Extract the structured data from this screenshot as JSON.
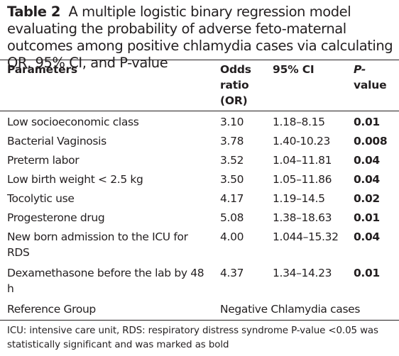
{
  "caption": {
    "label": "Table 2",
    "text": "A multiple logistic binary regression model evaluating the probability of adverse feto-maternal outcomes among positive chlamydia cases via calculating OR, 95% CI, and P-value"
  },
  "header": {
    "parameters": "Parameters",
    "or_line1": "Odds",
    "or_line2": "ratio",
    "or_line3": "(OR)",
    "ci": "95% CI",
    "p_line1": "P-",
    "p_line2": "value"
  },
  "rows": [
    {
      "param": "Low socioeconomic class",
      "or": "3.10",
      "ci": "1.18–8.15",
      "p": "0.01"
    },
    {
      "param": "Bacterial Vaginosis",
      "or": "3.78",
      "ci": "1.40-10.23",
      "p": "0.008"
    },
    {
      "param": "Preterm labor",
      "or": "3.52",
      "ci": "1.04–11.81",
      "p": "0.04"
    },
    {
      "param": "Low birth weight < 2.5 kg",
      "or": "3.50",
      "ci": "1.05–11.86",
      "p": "0.04"
    },
    {
      "param": "Tocolytic use",
      "or": "4.17",
      "ci": "1.19–14.5",
      "p": "0.02"
    },
    {
      "param": "Progesterone drug",
      "or": "5.08",
      "ci": "1.38–18.63",
      "p": "0.01"
    },
    {
      "param": "New born admission to the ICU for RDS",
      "or": "4.00",
      "ci": "1.044–15.32",
      "p": "0.04"
    },
    {
      "param": "Dexamethasone before the lab by 48 h",
      "or": "4.37",
      "ci": "1.34–14.23",
      "p": "0.01"
    }
  ],
  "reference": {
    "label": "Reference Group",
    "value": "Negative Chlamydia cases"
  },
  "footnote": "ICU: intensive care unit, RDS: respiratory distress syndrome P-value <0.05 was statistically significant and was marked as bold"
}
